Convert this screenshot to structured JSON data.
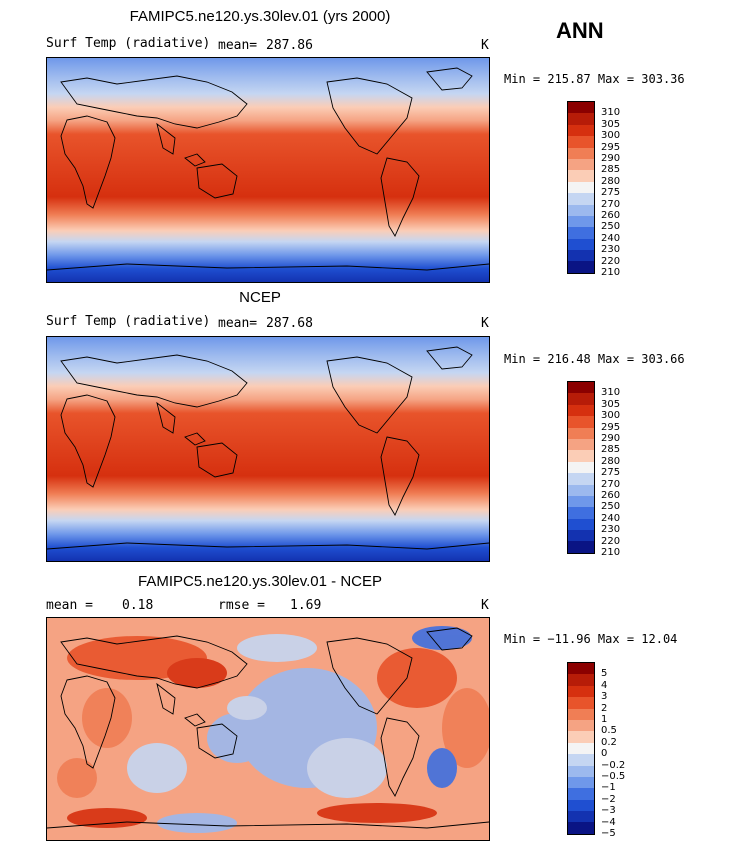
{
  "season": "ANN",
  "units": "K",
  "panels": [
    {
      "title": "FAMIPC5.ne120.ys.30lev.01 (yrs 2000)",
      "field_label": "Surf Temp (radiative)",
      "stat1_label": "mean=",
      "stat1_value": "287.86",
      "minmax": "Min = 215.87 Max = 303.36",
      "levels": [
        "310",
        "305",
        "300",
        "295",
        "290",
        "285",
        "280",
        "275",
        "270",
        "260",
        "250",
        "240",
        "230",
        "220",
        "210"
      ]
    },
    {
      "title": "NCEP",
      "field_label": "Surf Temp (radiative)",
      "stat1_label": "mean=",
      "stat1_value": "287.68",
      "minmax": "Min = 216.48 Max = 303.66",
      "levels": [
        "310",
        "305",
        "300",
        "295",
        "290",
        "285",
        "280",
        "275",
        "270",
        "260",
        "250",
        "240",
        "230",
        "220",
        "210"
      ]
    },
    {
      "title": "FAMIPC5.ne120.ys.30lev.01 - NCEP",
      "stat1_label": "mean =",
      "stat1_value": "0.18",
      "stat2_label": "rmse =",
      "stat2_value": "1.69",
      "minmax": "Min = −11.96 Max =  12.04",
      "levels": [
        "5",
        "4",
        "3",
        "2",
        "1",
        "0.5",
        "0.2",
        "0",
        "−0.2",
        "−0.5",
        "−1",
        "−2",
        "−3",
        "−4",
        "−5"
      ]
    }
  ],
  "colors": {
    "scale": [
      "#8b0000",
      "#b71c08",
      "#d6300f",
      "#e8542b",
      "#f07e55",
      "#f5a383",
      "#fbcdb6",
      "#f4f4f4",
      "#c5d6f2",
      "#9cb9ee",
      "#6f98ea",
      "#3f6fe0",
      "#1f4fd1",
      "#1332b0",
      "#0a1484"
    ]
  }
}
